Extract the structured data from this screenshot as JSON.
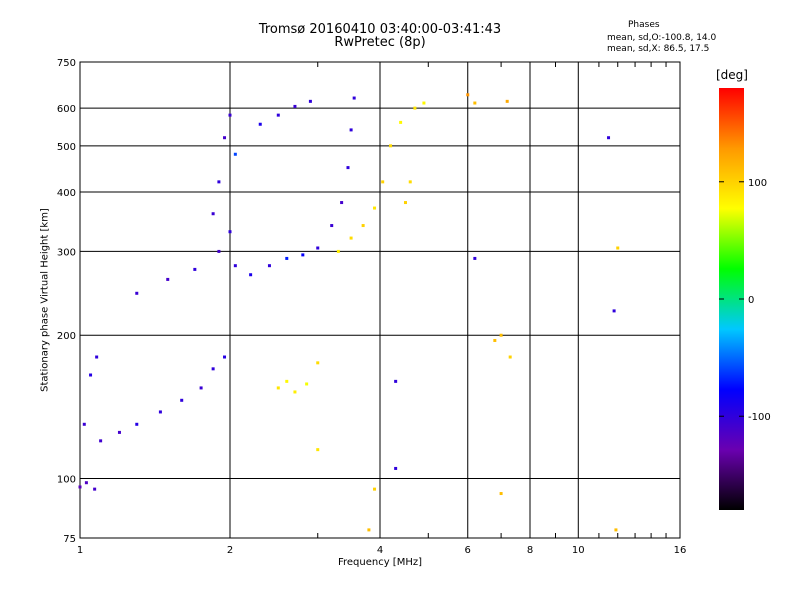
{
  "chart_data": {
    "type": "scatter",
    "title": "Tromsø 20160410 03:40:00-03:41:43",
    "subtitle": "RwPretec (8p)",
    "xlabel": "Frequency [MHz]",
    "ylabel": "Stationary phase Virtual Height [km]",
    "xscale": "log",
    "yscale": "log",
    "xlim": [
      1,
      16
    ],
    "ylim": [
      75,
      750
    ],
    "xticks": [
      1,
      2,
      4,
      6,
      8,
      10,
      16
    ],
    "yticks": [
      75,
      100,
      200,
      300,
      400,
      500,
      600,
      750
    ],
    "grid": true,
    "legend": {
      "title": "Phases",
      "lines": [
        "mean, sd,O:-100.8, 14.0",
        "mean, sd,X: 86.5, 17.5"
      ]
    },
    "colorbar": {
      "label": "[deg]",
      "range": [
        -180,
        180
      ],
      "ticks": [
        100,
        0,
        -100
      ],
      "colors": [
        "#000000",
        "#6a00b0",
        "#0000ff",
        "#00c8ff",
        "#00ff00",
        "#ffff00",
        "#ff9900",
        "#ff0000"
      ]
    },
    "series": [
      {
        "trace": "O",
        "points": [
          [
            1.0,
            96,
            -120
          ],
          [
            1.03,
            98,
            -115
          ],
          [
            1.07,
            95,
            -110
          ],
          [
            1.02,
            130,
            -105
          ],
          [
            1.1,
            120,
            -108
          ],
          [
            1.2,
            125,
            -110
          ],
          [
            1.3,
            130,
            -95
          ],
          [
            1.45,
            138,
            -100
          ],
          [
            1.6,
            146,
            -100
          ],
          [
            1.75,
            155,
            -105
          ],
          [
            1.85,
            170,
            -100
          ],
          [
            1.95,
            180,
            -95
          ],
          [
            1.05,
            165,
            -95
          ],
          [
            1.08,
            180,
            -100
          ],
          [
            1.3,
            245,
            -105
          ],
          [
            1.5,
            262,
            -110
          ],
          [
            1.7,
            275,
            -100
          ],
          [
            1.9,
            300,
            -110
          ],
          [
            2.0,
            330,
            -100
          ],
          [
            2.05,
            280,
            -100
          ],
          [
            1.85,
            360,
            -105
          ],
          [
            1.9,
            420,
            -100
          ],
          [
            1.95,
            520,
            -110
          ],
          [
            2.0,
            580,
            -105
          ],
          [
            2.05,
            480,
            -60
          ],
          [
            2.3,
            555,
            -90
          ],
          [
            2.5,
            580,
            -100
          ],
          [
            2.7,
            605,
            -105
          ],
          [
            2.9,
            620,
            -100
          ],
          [
            2.2,
            268,
            -90
          ],
          [
            2.4,
            280,
            -100
          ],
          [
            2.6,
            290,
            -70
          ],
          [
            2.8,
            295,
            -80
          ],
          [
            3.0,
            305,
            -100
          ],
          [
            3.2,
            340,
            -105
          ],
          [
            3.35,
            380,
            -110
          ],
          [
            3.45,
            450,
            -100
          ],
          [
            3.5,
            540,
            -100
          ],
          [
            3.55,
            630,
            -100
          ],
          [
            6.2,
            290,
            -100
          ],
          [
            11.5,
            520,
            -100
          ],
          [
            11.8,
            225,
            -100
          ],
          [
            4.3,
            105,
            -100
          ],
          [
            4.3,
            160,
            -100
          ]
        ]
      },
      {
        "trace": "X",
        "points": [
          [
            3.3,
            300,
            85
          ],
          [
            3.5,
            320,
            95
          ],
          [
            3.7,
            340,
            100
          ],
          [
            3.9,
            370,
            90
          ],
          [
            4.05,
            420,
            100
          ],
          [
            4.2,
            500,
            95
          ],
          [
            4.4,
            560,
            80
          ],
          [
            4.7,
            600,
            90
          ],
          [
            4.9,
            615,
            80
          ],
          [
            4.5,
            380,
            100
          ],
          [
            4.6,
            420,
            95
          ],
          [
            2.5,
            155,
            90
          ],
          [
            2.6,
            160,
            80
          ],
          [
            2.7,
            152,
            85
          ],
          [
            2.85,
            158,
            75
          ],
          [
            3.0,
            175,
            95
          ],
          [
            6.2,
            615,
            110
          ],
          [
            6.8,
            195,
            110
          ],
          [
            7.0,
            200,
            110
          ],
          [
            7.3,
            180,
            100
          ],
          [
            7.2,
            620,
            120
          ],
          [
            12.0,
            305,
            100
          ],
          [
            11.9,
            78,
            110
          ],
          [
            7.0,
            93,
            110
          ],
          [
            6.0,
            640,
            130
          ],
          [
            3.9,
            95,
            100
          ],
          [
            3.8,
            78,
            110
          ],
          [
            3.0,
            115,
            90
          ]
        ]
      }
    ]
  }
}
